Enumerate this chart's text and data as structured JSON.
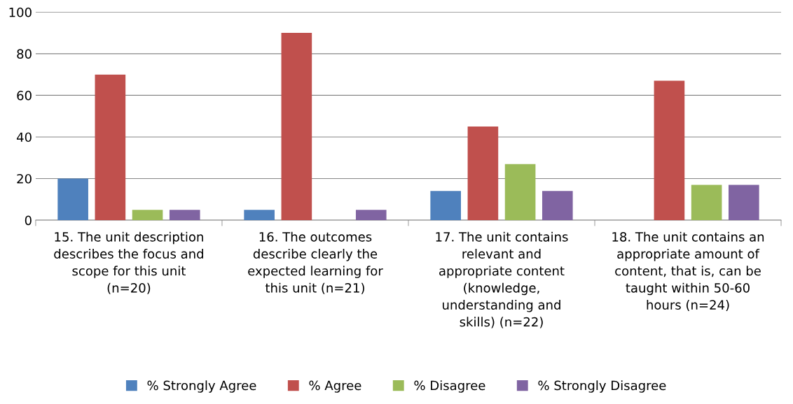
{
  "chart_data": {
    "type": "bar",
    "categories": [
      "15. The unit description\ndescribes the focus and\nscope for this unit\n(n=20)",
      "16. The outcomes\ndescribe clearly the\nexpected learning for\nthis unit (n=21)",
      "17. The unit contains\nrelevant and\nappropriate content\n(knowledge,\nunderstanding and\nskills) (n=22)",
      "18. The unit contains an\nappropriate amount of\ncontent, that is, can be\ntaught within 50-60\nhours (n=24)"
    ],
    "series": [
      {
        "name": "% Strongly Agree",
        "color": "#4f81bd",
        "values": [
          20,
          5,
          14,
          0
        ]
      },
      {
        "name": "% Agree",
        "color": "#c0504d",
        "values": [
          70,
          90,
          45,
          67
        ]
      },
      {
        "name": "% Disagree",
        "color": "#9bbb59",
        "values": [
          5,
          0,
          27,
          17
        ]
      },
      {
        "name": "% Strongly Disagree",
        "color": "#8064a2",
        "values": [
          5,
          5,
          14,
          17
        ]
      }
    ],
    "ylim": [
      0,
      100
    ],
    "yticks": [
      0,
      20,
      40,
      60,
      80,
      100
    ],
    "grid": "y",
    "legend": "bottom"
  }
}
